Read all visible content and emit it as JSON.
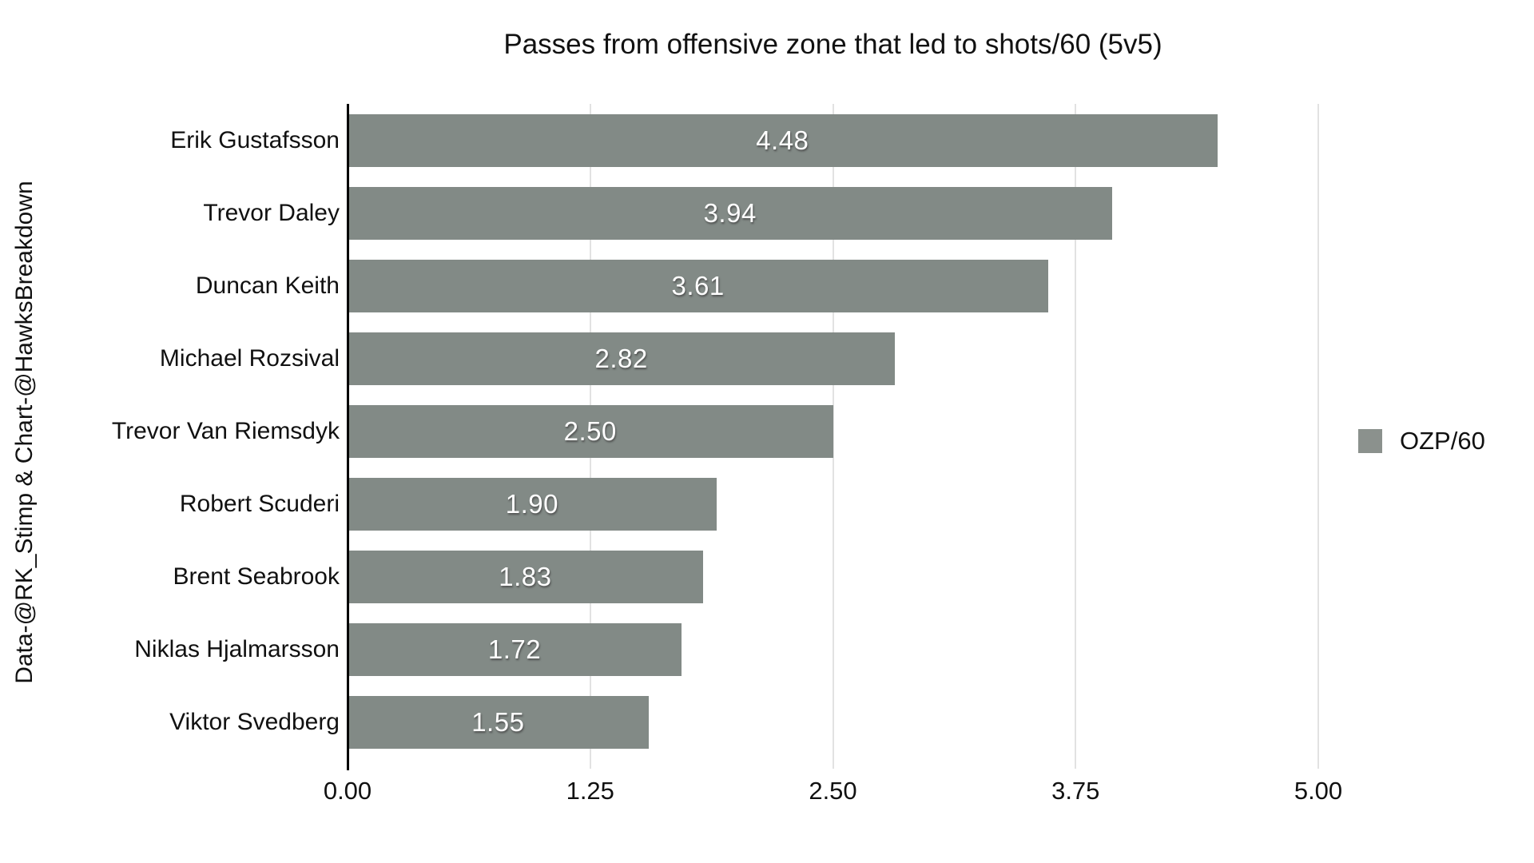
{
  "title": "Passes from offensive zone that led to shots/60 (5v5)",
  "credit": "Data-@RK_Stimp & Chart-@HawksBreakdown",
  "legend": {
    "label": "OZP/60"
  },
  "colors": {
    "bar": "#828a86",
    "legend_swatch": "#8b918d",
    "gridline": "#e2e2e2",
    "axis": "#000000",
    "value_text": "#ffffff",
    "text": "#111111",
    "background": "#ffffff"
  },
  "chart_data": {
    "type": "bar",
    "orientation": "horizontal",
    "title": "Passes from offensive zone that led to shots/60 (5v5)",
    "categories": [
      "Erik Gustafsson",
      "Trevor Daley",
      "Duncan Keith",
      "Michael Rozsival",
      "Trevor Van Riemsdyk",
      "Robert Scuderi",
      "Brent Seabrook",
      "Niklas Hjalmarsson",
      "Viktor Svedberg"
    ],
    "series": [
      {
        "name": "OZP/60",
        "values": [
          4.48,
          3.94,
          3.61,
          2.82,
          2.5,
          1.9,
          1.83,
          1.72,
          1.55
        ]
      }
    ],
    "value_labels": [
      "4.48",
      "3.94",
      "3.61",
      "2.82",
      "2.50",
      "1.90",
      "1.83",
      "1.72",
      "1.55"
    ],
    "xlim": [
      0,
      5
    ],
    "x_ticks": [
      {
        "label": "0.00",
        "value": 0
      },
      {
        "label": "1.25",
        "value": 1.25
      },
      {
        "label": "2.50",
        "value": 2.5
      },
      {
        "label": "3.75",
        "value": 3.75
      },
      {
        "label": "5.00",
        "value": 5
      }
    ],
    "grid": true,
    "legend_position": "right",
    "value_label_position": "center"
  }
}
